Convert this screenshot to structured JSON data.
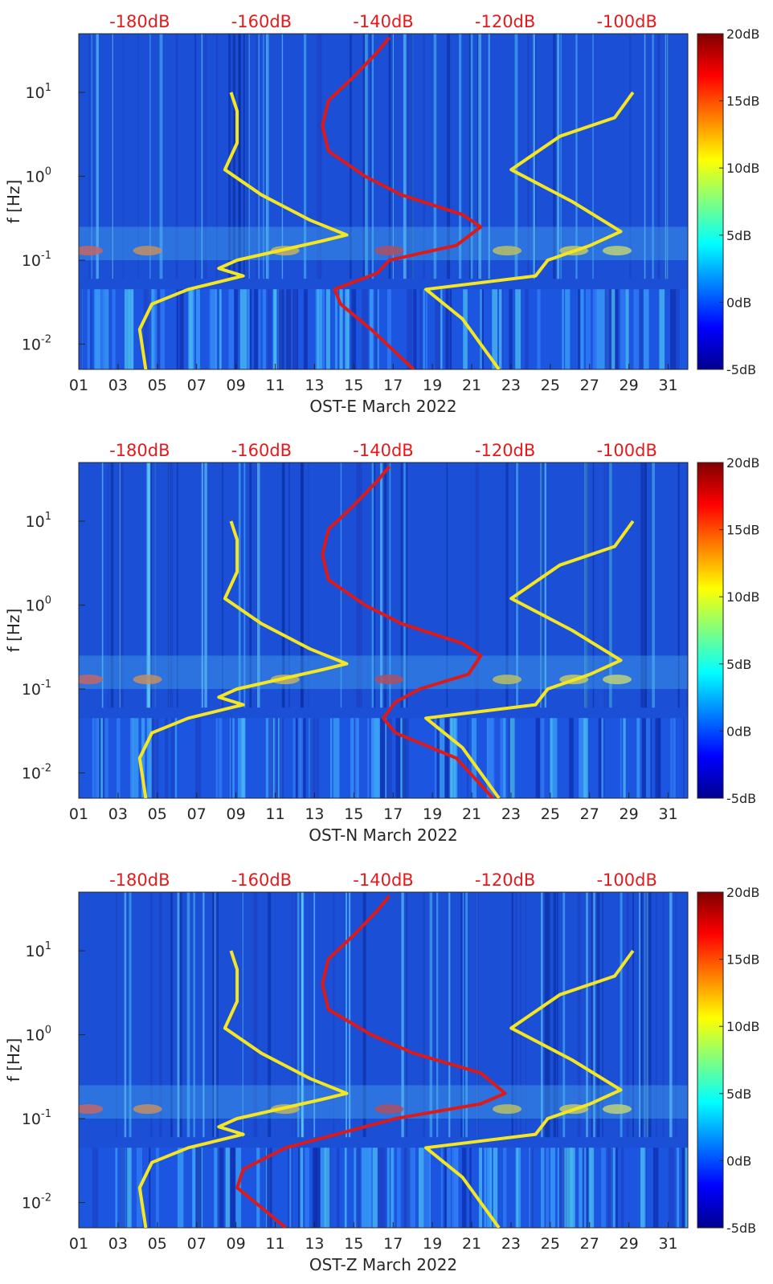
{
  "chart_data": [
    {
      "type": "heatmap",
      "title": "",
      "xlabel": "OST-E March 2022",
      "ylabel": "f [Hz]",
      "x_tick_labels": [
        "01",
        "03",
        "05",
        "07",
        "09",
        "11",
        "13",
        "15",
        "17",
        "19",
        "21",
        "23",
        "25",
        "27",
        "29",
        "31"
      ],
      "x_days": [
        1,
        3,
        5,
        7,
        9,
        11,
        13,
        15,
        17,
        19,
        21,
        23,
        25,
        27,
        29,
        31
      ],
      "xlim": [
        1,
        32
      ],
      "y_scale": "log",
      "ylim": [
        0.005,
        50
      ],
      "y_ticks": [
        0.01,
        0.1,
        1,
        10
      ],
      "y_tick_labels": [
        [
          "10",
          "-2"
        ],
        [
          "10",
          "-1"
        ],
        [
          "10",
          "0"
        ],
        [
          "10",
          "1"
        ]
      ],
      "top_axis": {
        "labels": [
          "-180dB",
          "-160dB",
          "-140dB",
          "-120dB",
          "-100dB"
        ],
        "values": [
          -180,
          -160,
          -140,
          -120,
          -100
        ],
        "color": "#e41a1c"
      },
      "colorbar": {
        "range": [
          -5,
          20
        ],
        "labels": [
          "20dB",
          "15dB",
          "10dB",
          "5dB",
          "0dB",
          "-5dB"
        ],
        "values": [
          20,
          15,
          10,
          5,
          0,
          -5
        ],
        "colormap": "jet"
      },
      "series": [
        {
          "color": "#f5e623",
          "x_unit": "dB",
          "points": [
            [
              0.005,
              -179
            ],
            [
              0.015,
              -180
            ],
            [
              0.03,
              -178
            ],
            [
              0.045,
              -172
            ],
            [
              0.065,
              -163
            ],
            [
              0.08,
              -167
            ],
            [
              0.1,
              -164
            ],
            [
              0.17,
              -150
            ],
            [
              0.2,
              -146
            ],
            [
              0.3,
              -152
            ],
            [
              0.6,
              -160
            ],
            [
              1.2,
              -166
            ],
            [
              2.5,
              -164
            ],
            [
              6,
              -164
            ],
            [
              10,
              -165
            ]
          ]
        },
        {
          "color": "#f5e623",
          "x_unit": "dB",
          "points": [
            [
              0.005,
              -121
            ],
            [
              0.02,
              -127
            ],
            [
              0.045,
              -133
            ],
            [
              0.065,
              -115
            ],
            [
              0.1,
              -113
            ],
            [
              0.15,
              -106
            ],
            [
              0.22,
              -101
            ],
            [
              0.5,
              -109
            ],
            [
              1.2,
              -119
            ],
            [
              3,
              -111
            ],
            [
              5,
              -102
            ],
            [
              10,
              -99
            ]
          ]
        },
        {
          "color": "#dd1a1a",
          "x_unit": "dB",
          "points": [
            [
              0.005,
              -135
            ],
            [
              0.015,
              -142
            ],
            [
              0.03,
              -147
            ],
            [
              0.045,
              -148
            ],
            [
              0.07,
              -141
            ],
            [
              0.1,
              -139
            ],
            [
              0.15,
              -128
            ],
            [
              0.25,
              -124
            ],
            [
              0.35,
              -127
            ],
            [
              0.6,
              -137
            ],
            [
              1,
              -143
            ],
            [
              2,
              -149
            ],
            [
              4,
              -150
            ],
            [
              8,
              -149
            ],
            [
              15,
              -145
            ],
            [
              30,
              -141
            ],
            [
              45,
              -139
            ]
          ]
        }
      ]
    },
    {
      "type": "heatmap",
      "title": "",
      "xlabel": "OST-N March 2022",
      "ylabel": "f [Hz]",
      "x_tick_labels": [
        "01",
        "03",
        "05",
        "07",
        "09",
        "11",
        "13",
        "15",
        "17",
        "19",
        "21",
        "23",
        "25",
        "27",
        "29",
        "31"
      ],
      "x_days": [
        1,
        3,
        5,
        7,
        9,
        11,
        13,
        15,
        17,
        19,
        21,
        23,
        25,
        27,
        29,
        31
      ],
      "xlim": [
        1,
        32
      ],
      "y_scale": "log",
      "ylim": [
        0.005,
        50
      ],
      "y_ticks": [
        0.01,
        0.1,
        1,
        10
      ],
      "y_tick_labels": [
        [
          "10",
          "-2"
        ],
        [
          "10",
          "-1"
        ],
        [
          "10",
          "0"
        ],
        [
          "10",
          "1"
        ]
      ],
      "top_axis": {
        "labels": [
          "-180dB",
          "-160dB",
          "-140dB",
          "-120dB",
          "-100dB"
        ],
        "values": [
          -180,
          -160,
          -140,
          -120,
          -100
        ],
        "color": "#e41a1c"
      },
      "colorbar": {
        "range": [
          -5,
          20
        ],
        "labels": [
          "20dB",
          "15dB",
          "10dB",
          "5dB",
          "0dB",
          "-5dB"
        ],
        "values": [
          20,
          15,
          10,
          5,
          0,
          -5
        ],
        "colormap": "jet"
      },
      "series": [
        {
          "color": "#f5e623",
          "x_unit": "dB",
          "points": [
            [
              0.005,
              -179
            ],
            [
              0.015,
              -180
            ],
            [
              0.03,
              -178
            ],
            [
              0.045,
              -172
            ],
            [
              0.065,
              -163
            ],
            [
              0.08,
              -167
            ],
            [
              0.1,
              -164
            ],
            [
              0.17,
              -150
            ],
            [
              0.2,
              -146
            ],
            [
              0.3,
              -152
            ],
            [
              0.6,
              -160
            ],
            [
              1.2,
              -166
            ],
            [
              2.5,
              -164
            ],
            [
              6,
              -164
            ],
            [
              10,
              -165
            ]
          ]
        },
        {
          "color": "#f5e623",
          "x_unit": "dB",
          "points": [
            [
              0.005,
              -121
            ],
            [
              0.02,
              -127
            ],
            [
              0.045,
              -133
            ],
            [
              0.065,
              -115
            ],
            [
              0.1,
              -113
            ],
            [
              0.15,
              -106
            ],
            [
              0.22,
              -101
            ],
            [
              0.5,
              -109
            ],
            [
              1.2,
              -119
            ],
            [
              3,
              -111
            ],
            [
              5,
              -102
            ],
            [
              10,
              -99
            ]
          ]
        },
        {
          "color": "#dd1a1a",
          "x_unit": "dB",
          "points": [
            [
              0.005,
              -122
            ],
            [
              0.015,
              -128
            ],
            [
              0.03,
              -138
            ],
            [
              0.045,
              -140
            ],
            [
              0.07,
              -138
            ],
            [
              0.1,
              -134
            ],
            [
              0.15,
              -126
            ],
            [
              0.25,
              -124
            ],
            [
              0.35,
              -127
            ],
            [
              0.6,
              -137
            ],
            [
              1,
              -143
            ],
            [
              2,
              -149
            ],
            [
              4,
              -150
            ],
            [
              8,
              -149
            ],
            [
              15,
              -145
            ],
            [
              30,
              -141
            ],
            [
              45,
              -139
            ]
          ]
        }
      ]
    },
    {
      "type": "heatmap",
      "title": "",
      "xlabel": "OST-Z March 2022",
      "ylabel": "f [Hz]",
      "x_tick_labels": [
        "01",
        "03",
        "05",
        "07",
        "09",
        "11",
        "13",
        "15",
        "17",
        "19",
        "21",
        "23",
        "25",
        "27",
        "29",
        "31"
      ],
      "x_days": [
        1,
        3,
        5,
        7,
        9,
        11,
        13,
        15,
        17,
        19,
        21,
        23,
        25,
        27,
        29,
        31
      ],
      "xlim": [
        1,
        32
      ],
      "y_scale": "log",
      "ylim": [
        0.005,
        50
      ],
      "y_ticks": [
        0.01,
        0.1,
        1,
        10
      ],
      "y_tick_labels": [
        [
          "10",
          "-2"
        ],
        [
          "10",
          "-1"
        ],
        [
          "10",
          "0"
        ],
        [
          "10",
          "1"
        ]
      ],
      "top_axis": {
        "labels": [
          "-180dB",
          "-160dB",
          "-140dB",
          "-120dB",
          "-100dB"
        ],
        "values": [
          -180,
          -160,
          -140,
          -120,
          -100
        ],
        "color": "#e41a1c"
      },
      "colorbar": {
        "range": [
          -5,
          20
        ],
        "labels": [
          "20dB",
          "15dB",
          "10dB",
          "5dB",
          "0dB",
          "-5dB"
        ],
        "values": [
          20,
          15,
          10,
          5,
          0,
          -5
        ],
        "colormap": "jet"
      },
      "series": [
        {
          "color": "#f5e623",
          "x_unit": "dB",
          "points": [
            [
              0.005,
              -179
            ],
            [
              0.015,
              -180
            ],
            [
              0.03,
              -178
            ],
            [
              0.045,
              -172
            ],
            [
              0.065,
              -163
            ],
            [
              0.08,
              -167
            ],
            [
              0.1,
              -164
            ],
            [
              0.17,
              -150
            ],
            [
              0.2,
              -146
            ],
            [
              0.3,
              -152
            ],
            [
              0.6,
              -160
            ],
            [
              1.2,
              -166
            ],
            [
              2.5,
              -164
            ],
            [
              6,
              -164
            ],
            [
              10,
              -165
            ]
          ]
        },
        {
          "color": "#f5e623",
          "x_unit": "dB",
          "points": [
            [
              0.005,
              -121
            ],
            [
              0.02,
              -127
            ],
            [
              0.045,
              -133
            ],
            [
              0.065,
              -115
            ],
            [
              0.1,
              -113
            ],
            [
              0.15,
              -106
            ],
            [
              0.22,
              -101
            ],
            [
              0.5,
              -109
            ],
            [
              1.2,
              -119
            ],
            [
              3,
              -111
            ],
            [
              5,
              -102
            ],
            [
              10,
              -99
            ]
          ]
        },
        {
          "color": "#dd1a1a",
          "x_unit": "dB",
          "points": [
            [
              0.005,
              -156
            ],
            [
              0.01,
              -161
            ],
            [
              0.015,
              -164
            ],
            [
              0.025,
              -163
            ],
            [
              0.045,
              -156
            ],
            [
              0.07,
              -146
            ],
            [
              0.1,
              -138
            ],
            [
              0.15,
              -124
            ],
            [
              0.2,
              -120
            ],
            [
              0.35,
              -124
            ],
            [
              0.6,
              -135
            ],
            [
              1,
              -142
            ],
            [
              2,
              -149
            ],
            [
              4,
              -150
            ],
            [
              8,
              -149
            ],
            [
              15,
              -145
            ],
            [
              30,
              -141
            ],
            [
              45,
              -139
            ]
          ]
        }
      ]
    }
  ]
}
